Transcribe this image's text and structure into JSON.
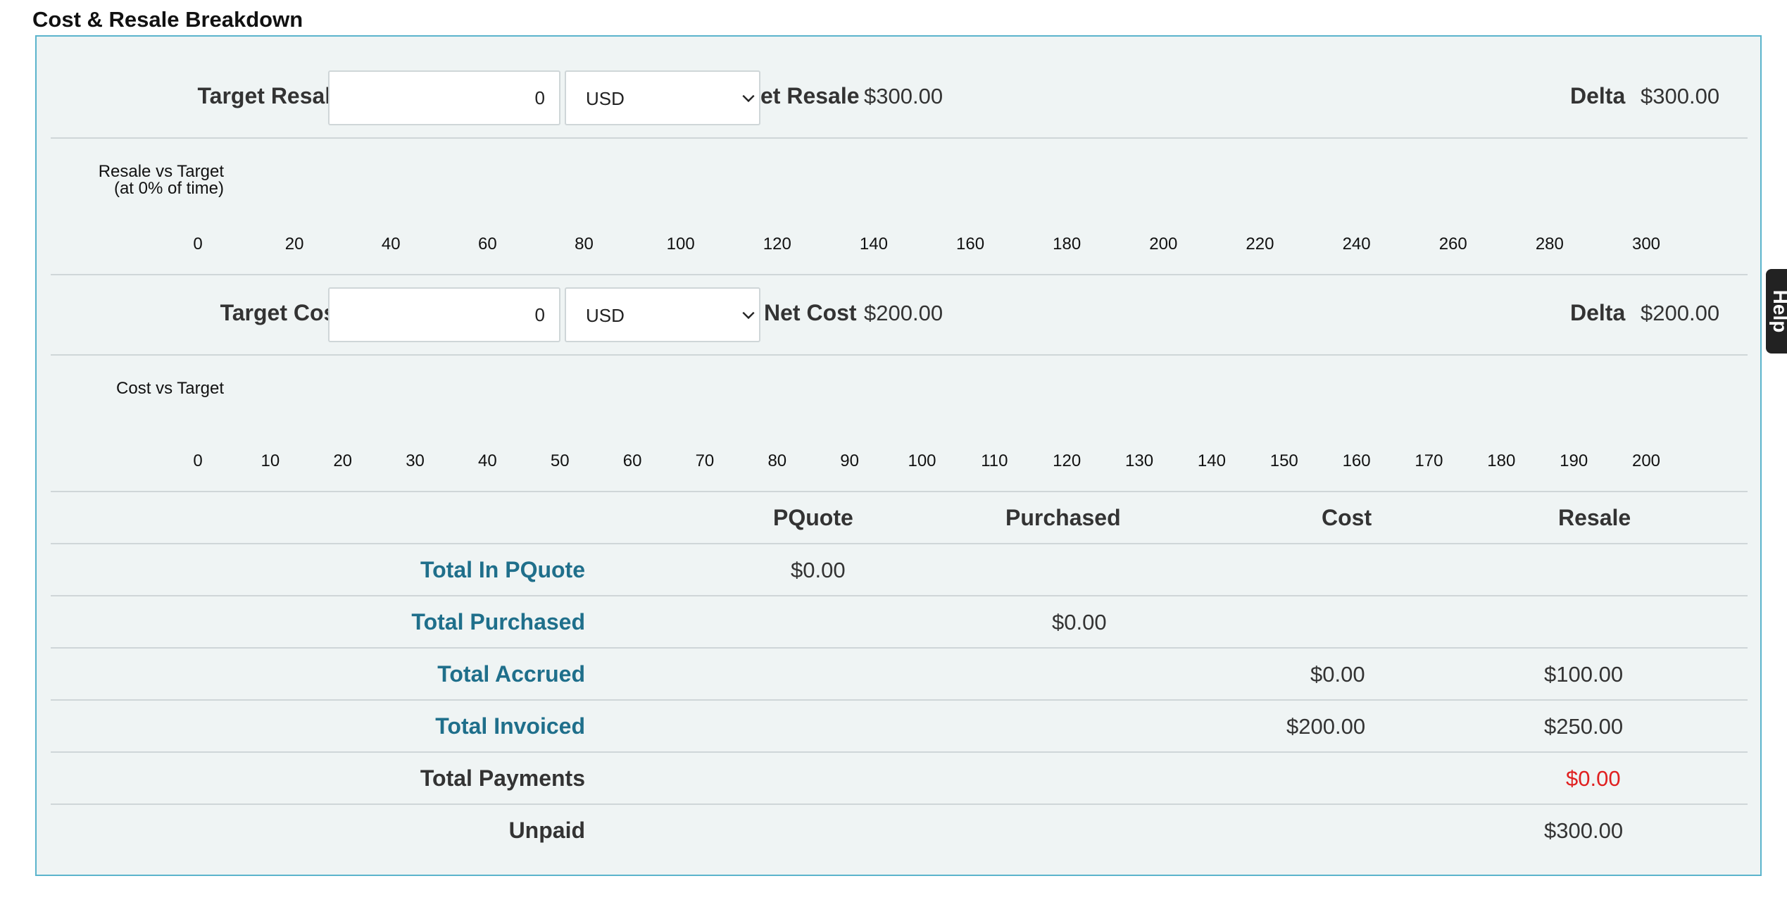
{
  "section_title": "Cost & Resale Breakdown",
  "resale": {
    "label": "Target Resale",
    "input_value": "0",
    "currency": "USD",
    "net_label": "et Resale",
    "net_value": "$300.00",
    "delta_label": "Delta",
    "delta_value": "$300.00"
  },
  "resale_chart": {
    "title_line1": "Resale vs Target",
    "title_line2": "(at 0% of time)",
    "ticks": [
      "0",
      "20",
      "40",
      "60",
      "80",
      "100",
      "120",
      "140",
      "160",
      "180",
      "200",
      "220",
      "240",
      "260",
      "280",
      "300"
    ]
  },
  "cost": {
    "label": "Target Cost",
    "input_value": "0",
    "currency": "USD",
    "net_label": "Net Cost",
    "net_value": "$200.00",
    "delta_label": "Delta",
    "delta_value": "$200.00"
  },
  "cost_chart": {
    "title": "Cost vs Target",
    "ticks": [
      "0",
      "10",
      "20",
      "30",
      "40",
      "50",
      "60",
      "70",
      "80",
      "90",
      "100",
      "110",
      "120",
      "130",
      "140",
      "150",
      "160",
      "170",
      "180",
      "190",
      "200"
    ]
  },
  "table": {
    "headers": {
      "pquote": "PQuote",
      "purchased": "Purchased",
      "cost": "Cost",
      "resale": "Resale"
    },
    "rows": [
      {
        "label": "Total In PQuote",
        "link": true,
        "pquote": "$0.00",
        "purchased": "",
        "cost": "",
        "resale": ""
      },
      {
        "label": "Total Purchased",
        "link": true,
        "pquote": "",
        "purchased": "$0.00",
        "cost": "",
        "resale": ""
      },
      {
        "label": "Total Accrued",
        "link": true,
        "pquote": "",
        "purchased": "",
        "cost": "$0.00",
        "resale": "$100.00"
      },
      {
        "label": "Total Invoiced",
        "link": true,
        "pquote": "",
        "purchased": "",
        "cost": "$200.00",
        "resale": "$250.00"
      },
      {
        "label": "Total Payments",
        "link": false,
        "pquote": "",
        "purchased": "",
        "cost": "",
        "resale": "$0.00"
      },
      {
        "label": "Unpaid",
        "link": false,
        "pquote": "",
        "purchased": "",
        "cost": "",
        "resale": "$300.00"
      }
    ]
  },
  "help": {
    "label": "Help"
  },
  "colors": {
    "border": "#5bb4cc",
    "panel_bg": "#eff4f4",
    "link": "#1f6f8b",
    "negative": "#e02020"
  }
}
